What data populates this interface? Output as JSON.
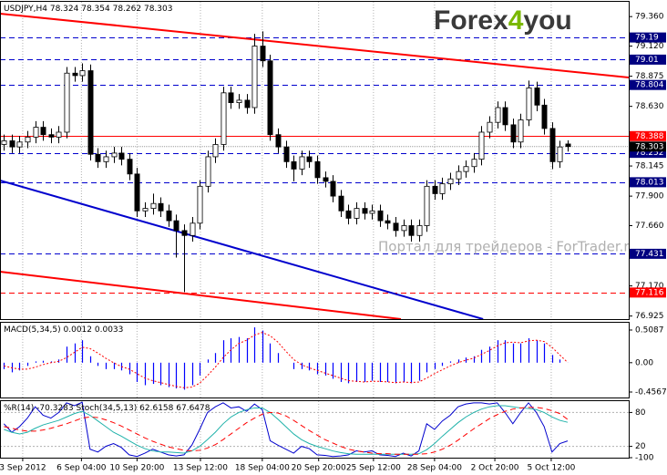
{
  "chart_data": [
    {
      "type": "candlestick",
      "title": "USDJPY,H4",
      "logo": [
        "Forex",
        "4",
        "you"
      ],
      "logo_colors": [
        "#3a3a3a",
        "#7ab800",
        "#3a3a3a"
      ],
      "watermark": "Портал для трейдеров - ForTrader.ru",
      "open": [
        78.32,
        78.35,
        78.3,
        78.34,
        78.38,
        78.46,
        78.4,
        78.38,
        78.42,
        78.9,
        78.88,
        78.92,
        78.24,
        78.18,
        78.22,
        78.25,
        78.2,
        78.08,
        77.78,
        77.8,
        77.84,
        77.78,
        77.7,
        77.62,
        77.58,
        77.68,
        77.98,
        78.22,
        78.32,
        78.74,
        78.66,
        78.68,
        78.62,
        79.12,
        79.0,
        78.4,
        78.3,
        78.18,
        78.12,
        78.22,
        78.18,
        78.05,
        78.02,
        77.9,
        77.78,
        77.72,
        77.8,
        77.76,
        77.78,
        77.7,
        77.68,
        77.62,
        77.66,
        77.58,
        77.66,
        77.98,
        77.92,
        78.0,
        78.04,
        78.1,
        78.14,
        78.2,
        78.42,
        78.5,
        78.62,
        78.48,
        78.34,
        78.52,
        78.78,
        78.64,
        78.45,
        78.18,
        78.324
      ],
      "high": [
        78.4,
        78.4,
        78.39,
        78.43,
        78.51,
        78.51,
        78.45,
        78.47,
        78.95,
        78.95,
        78.98,
        78.97,
        78.29,
        78.27,
        78.3,
        78.3,
        78.25,
        78.13,
        77.85,
        77.92,
        77.89,
        77.83,
        77.75,
        77.67,
        77.73,
        78.03,
        78.27,
        78.37,
        78.79,
        78.79,
        78.73,
        78.73,
        79.22,
        79.24,
        79.05,
        78.45,
        78.35,
        78.23,
        78.27,
        78.27,
        78.23,
        78.1,
        78.07,
        77.95,
        77.83,
        77.85,
        77.85,
        77.83,
        77.83,
        77.75,
        77.73,
        77.71,
        77.71,
        77.71,
        78.03,
        78.03,
        78.05,
        78.09,
        78.15,
        78.19,
        78.25,
        78.47,
        78.55,
        78.67,
        78.67,
        78.53,
        78.57,
        78.84,
        78.83,
        78.69,
        78.5,
        78.35,
        78.354
      ],
      "low": [
        78.27,
        78.25,
        78.25,
        78.29,
        78.33,
        78.35,
        78.33,
        78.33,
        78.37,
        78.83,
        78.83,
        78.19,
        78.13,
        78.13,
        78.17,
        78.15,
        78.03,
        77.73,
        77.73,
        77.75,
        77.73,
        77.65,
        77.4,
        77.12,
        77.53,
        77.63,
        77.93,
        78.17,
        78.27,
        78.61,
        78.61,
        78.57,
        78.57,
        78.95,
        78.35,
        78.25,
        78.13,
        78.02,
        78.07,
        78.13,
        78.0,
        77.97,
        77.85,
        77.73,
        77.67,
        77.67,
        77.71,
        77.71,
        77.65,
        77.63,
        77.57,
        77.57,
        77.53,
        77.53,
        77.61,
        77.87,
        77.87,
        77.95,
        77.99,
        78.05,
        78.09,
        78.15,
        78.37,
        78.45,
        78.43,
        78.29,
        78.29,
        78.47,
        78.59,
        78.4,
        78.12,
        78.13,
        78.262
      ],
      "close": [
        78.35,
        78.3,
        78.34,
        78.38,
        78.46,
        78.4,
        78.38,
        78.42,
        78.9,
        78.88,
        78.92,
        78.24,
        78.18,
        78.22,
        78.25,
        78.2,
        78.08,
        77.78,
        77.8,
        77.84,
        77.78,
        77.7,
        77.62,
        77.58,
        77.68,
        77.98,
        78.22,
        78.32,
        78.74,
        78.66,
        78.68,
        78.62,
        79.12,
        79.0,
        78.4,
        78.3,
        78.18,
        78.12,
        78.22,
        78.18,
        78.05,
        78.02,
        77.9,
        77.78,
        77.72,
        77.8,
        77.76,
        77.78,
        77.7,
        77.68,
        77.62,
        77.66,
        77.58,
        77.66,
        77.98,
        77.92,
        78.0,
        78.04,
        78.1,
        78.14,
        78.2,
        78.42,
        78.5,
        78.62,
        78.48,
        78.34,
        78.52,
        78.78,
        78.64,
        78.45,
        78.18,
        78.3,
        78.303
      ],
      "up_color": "#ffffff",
      "down_color": "#000000",
      "ylim": [
        76.9,
        79.48
      ],
      "yticks": [
        {
          "value": 79.36,
          "label": "79.360"
        },
        {
          "value": 79.12,
          "label": "79.120"
        },
        78.875,
        {
          "value": 78.63,
          "label": "78.630"
        },
        78.145,
        {
          "value": 77.9,
          "label": "77.900"
        },
        {
          "value": 77.66,
          "label": "77.660"
        },
        {
          "value": 77.17,
          "label": "77.170"
        },
        76.925
      ],
      "xlim": [
        -0.5,
        79.8
      ],
      "xticks": [
        {
          "value": 2.4,
          "label": "3 Sep 2012"
        },
        {
          "value": 9.9,
          "label": "6 Sep 04:00"
        },
        {
          "value": 17,
          "label": "10 Sep 20:00"
        },
        {
          "value": 25.1,
          "label": "13 Sep 12:00"
        },
        {
          "value": 33,
          "label": "18 Sep 04:00"
        },
        {
          "value": 40.2,
          "label": "20 Sep 20:00"
        },
        {
          "value": 47.2,
          "label": "25 Sep 12:00"
        },
        {
          "value": 55,
          "label": "28 Sep 04:00"
        },
        {
          "value": 62.7,
          "label": "2 Oct 20:00"
        },
        {
          "value": 69.9,
          "label": "5 Oct 12:00"
        }
      ],
      "grid": "x",
      "levels": [
        {
          "value": 79.19,
          "label": "79.190",
          "color": "#0000cd",
          "dash": "dashed"
        },
        {
          "value": 79.01,
          "label": "79.010",
          "color": "#0000cd",
          "dash": "dashed"
        },
        {
          "value": 78.804,
          "color": "#0000cd",
          "dash": "dashed"
        },
        {
          "value": 78.388,
          "color": "#ff0000",
          "dash": "solid"
        },
        {
          "value": 78.252,
          "color": "#0000cd",
          "dash": "dashed"
        },
        {
          "value": 78.013,
          "color": "#0000cd",
          "dash": "dashed"
        },
        {
          "value": 77.431,
          "color": "#0000cd",
          "dash": "dashed"
        },
        {
          "value": 77.116,
          "color": "#ff0000",
          "dash": "dashed"
        }
      ],
      "trendlines": [
        {
          "color": "#ff0000",
          "x": [
            -0.5,
            79.8
          ],
          "y": [
            79.384,
            78.865
          ]
        },
        {
          "color": "#0000cd",
          "x": [
            -0.5,
            61.2
          ],
          "y": [
            78.027,
            76.9
          ]
        },
        {
          "color": "#ff0000",
          "x": [
            -0.5,
            50.7
          ],
          "y": [
            77.286,
            76.9
          ]
        }
      ]
    },
    {
      "type": "bar",
      "title": "MACD(5,34,5)",
      "ylim": [
        -0.542,
        0.622
      ],
      "yticks": [
        0.5087,
        {
          "value": 0,
          "label": "0.00"
        },
        -0.4567
      ],
      "series": [
        {
          "color": "#0000ff",
          "style": "bar",
          "values": [
            -0.1,
            -0.15,
            -0.12,
            -0.05,
            0.02,
            0.03,
            0.02,
            0.05,
            0.25,
            0.3,
            0.35,
            0.1,
            -0.05,
            -0.1,
            -0.1,
            -0.12,
            -0.18,
            -0.3,
            -0.35,
            -0.33,
            -0.35,
            -0.38,
            -0.4,
            -0.42,
            -0.35,
            -0.2,
            0.05,
            0.15,
            0.35,
            0.38,
            0.4,
            0.38,
            0.55,
            0.5,
            0.3,
            0.15,
            0.0,
            -0.1,
            -0.1,
            -0.12,
            -0.18,
            -0.2,
            -0.25,
            -0.3,
            -0.32,
            -0.3,
            -0.3,
            -0.28,
            -0.3,
            -0.3,
            -0.32,
            -0.3,
            -0.32,
            -0.28,
            -0.15,
            -0.1,
            -0.05,
            0.02,
            0.05,
            0.08,
            0.1,
            0.2,
            0.25,
            0.35,
            0.35,
            0.3,
            0.3,
            0.38,
            0.35,
            0.3,
            0.12,
            0.05,
            0.0012
          ]
        },
        {
          "color": "#ff0000",
          "style": "line",
          "dash": "dotted",
          "values": [
            -0.05,
            -0.08,
            -0.1,
            -0.1,
            -0.07,
            -0.03,
            0.0,
            0.02,
            0.08,
            0.16,
            0.24,
            0.22,
            0.15,
            0.07,
            0.0,
            -0.06,
            -0.1,
            -0.17,
            -0.24,
            -0.28,
            -0.31,
            -0.34,
            -0.37,
            -0.39,
            -0.38,
            -0.32,
            -0.2,
            -0.07,
            0.08,
            0.2,
            0.3,
            0.35,
            0.43,
            0.47,
            0.42,
            0.32,
            0.18,
            0.05,
            -0.03,
            -0.08,
            -0.12,
            -0.16,
            -0.2,
            -0.24,
            -0.28,
            -0.29,
            -0.3,
            -0.29,
            -0.29,
            -0.3,
            -0.31,
            -0.3,
            -0.31,
            -0.3,
            -0.24,
            -0.17,
            -0.11,
            -0.05,
            0.0,
            0.04,
            0.07,
            0.13,
            0.19,
            0.26,
            0.31,
            0.32,
            0.31,
            0.34,
            0.35,
            0.33,
            0.24,
            0.12,
            0.0033
          ]
        }
      ]
    },
    {
      "type": "line",
      "title": "%R(14)",
      "subtitle": "Stoch(34,5,13)",
      "ylim": [
        0,
        100
      ],
      "yticks": [
        20,
        80
      ],
      "y2lim": [
        -100,
        0
      ],
      "y2ticks": [
        -100
      ],
      "series": [
        {
          "color": "#0000cd",
          "axis": "y2",
          "values": [
            -40,
            -55,
            -45,
            -30,
            -10,
            -25,
            -30,
            -20,
            -3,
            -8,
            -2,
            -85,
            -90,
            -80,
            -75,
            -82,
            -95,
            -98,
            -92,
            -85,
            -90,
            -95,
            -97,
            -95,
            -78,
            -50,
            -20,
            -10,
            -3,
            -12,
            -10,
            -18,
            -5,
            -15,
            -70,
            -78,
            -85,
            -92,
            -80,
            -84,
            -95,
            -96,
            -98,
            -97,
            -95,
            -88,
            -90,
            -88,
            -95,
            -96,
            -98,
            -92,
            -97,
            -88,
            -40,
            -50,
            -35,
            -25,
            -10,
            -5,
            -3,
            -3,
            -5,
            -3,
            -20,
            -40,
            -20,
            -3,
            -20,
            -45,
            -90,
            -75,
            -70.3283
          ]
        },
        {
          "color": "#20b2aa",
          "values": [
            50,
            45,
            42,
            45,
            52,
            58,
            62,
            66,
            72,
            78,
            82,
            75,
            65,
            55,
            45,
            38,
            30,
            22,
            16,
            12,
            10,
            10,
            9,
            8,
            12,
            20,
            32,
            45,
            60,
            72,
            80,
            85,
            88,
            88,
            80,
            68,
            55,
            42,
            32,
            25,
            20,
            16,
            12,
            9,
            7,
            6,
            6,
            6,
            6,
            6,
            6,
            6,
            6,
            7,
            14,
            25,
            38,
            50,
            62,
            72,
            80,
            86,
            90,
            92,
            92,
            90,
            88,
            87,
            85,
            80,
            72,
            66,
            62.6158
          ]
        },
        {
          "color": "#ff0000",
          "dash": "dashed",
          "values": [
            55,
            52,
            49,
            47,
            47,
            49,
            52,
            56,
            60,
            65,
            70,
            72,
            71,
            67,
            62,
            56,
            49,
            42,
            35,
            29,
            24,
            19,
            16,
            13,
            12,
            13,
            17,
            23,
            32,
            42,
            52,
            62,
            70,
            77,
            80,
            79,
            74,
            66,
            57,
            48,
            40,
            32,
            26,
            20,
            15,
            12,
            10,
            8,
            7,
            7,
            6,
            6,
            6,
            6,
            7,
            10,
            15,
            22,
            31,
            41,
            51,
            60,
            69,
            76,
            82,
            86,
            88,
            89,
            89,
            87,
            83,
            78,
            67.6478
          ]
        }
      ]
    }
  ]
}
